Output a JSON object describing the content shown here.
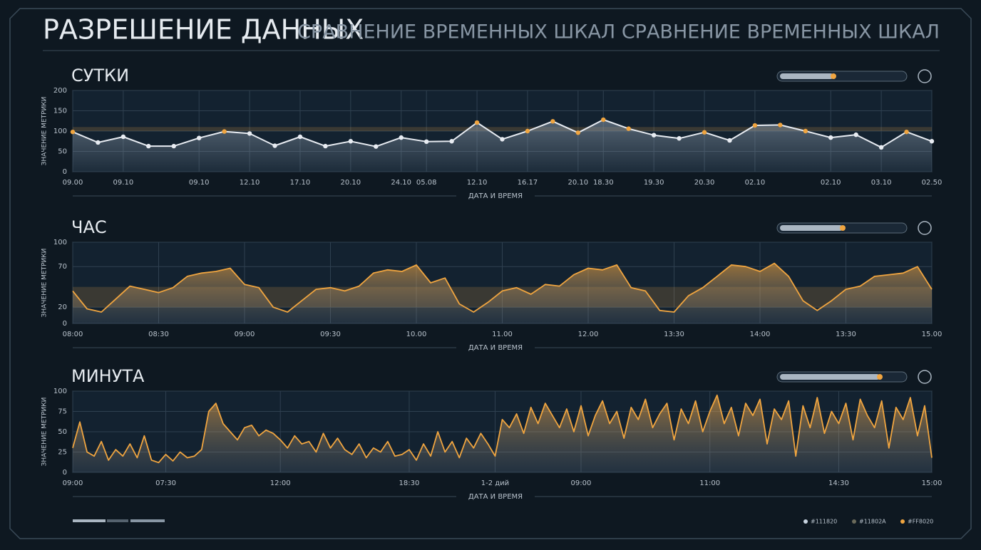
{
  "header": {
    "title": "РАЗРЕШЕНИЕ ДАННЫХ",
    "subtitle": "СРАВНЕНИЕ ВРЕМЕННЫХ ШКАЛ СРАВНЕНИЕ ВРЕМЕННЫХ ШКАЛ"
  },
  "chart_data": [
    {
      "type": "area",
      "title": "СУТКИ",
      "ylabel": "ЗНАЧЕНИЕ МЕТРИКИ",
      "xlabel": "ДАТА И ВРЕМЯ",
      "categories": [
        "09.00",
        null,
        "09.10",
        null,
        null,
        "09.10",
        null,
        "12.10",
        null,
        "17.10",
        null,
        "20.10",
        null,
        "24.10",
        "05.08",
        null,
        "12.10",
        null,
        "16.17",
        null,
        "20.10",
        "18.30",
        null,
        "19.30",
        null,
        "20.30",
        null,
        "02.10",
        null,
        null,
        "02.10",
        null,
        "03.10",
        null,
        "02.50"
      ],
      "values": [
        98,
        72,
        86,
        63,
        63,
        83,
        99,
        94,
        64,
        86,
        63,
        75,
        62,
        84,
        74,
        75,
        121,
        80,
        100,
        124,
        96,
        128,
        106,
        90,
        82,
        97,
        77,
        114,
        115,
        100,
        84,
        91,
        60,
        98,
        75
      ],
      "color": "#e8ecf2",
      "highlight_color": "#f0a540",
      "highlight_band": [
        100,
        110
      ],
      "ylim": [
        0,
        200
      ],
      "yticks": [
        0,
        50,
        100,
        150,
        200
      ],
      "grid": true,
      "markers": true
    },
    {
      "type": "area",
      "title": "ЧАС",
      "ylabel": "ЗНАЧЕНИЕ МЕТРИКИ",
      "xlabel": "ДАТА И ВРЕМЯ",
      "categories": [
        "08:00",
        null,
        null,
        null,
        null,
        null,
        "08:30",
        null,
        null,
        null,
        null,
        null,
        "09:00",
        null,
        null,
        null,
        null,
        null,
        "09:30",
        null,
        null,
        null,
        null,
        null,
        "10.00",
        null,
        null,
        null,
        null,
        null,
        "11.00",
        null,
        null,
        null,
        null,
        null,
        "12.00",
        null,
        null,
        null,
        null,
        null,
        "13:30",
        null,
        null,
        null,
        null,
        null,
        "14:00",
        null,
        null,
        null,
        null,
        null,
        "13:30",
        null,
        null,
        null,
        null,
        null,
        "15.00"
      ],
      "values": [
        40,
        18,
        14,
        30,
        46,
        42,
        38,
        44,
        58,
        62,
        64,
        68,
        48,
        44,
        20,
        14,
        28,
        42,
        44,
        40,
        46,
        62,
        66,
        64,
        72,
        50,
        56,
        24,
        14,
        26,
        40,
        44,
        36,
        48,
        46,
        60,
        68,
        66,
        72,
        44,
        40,
        16,
        14,
        34,
        44,
        58,
        72,
        70,
        64,
        74,
        58,
        28,
        16,
        28,
        42,
        46,
        58,
        60,
        62,
        70,
        42
      ],
      "color": "#f0a540",
      "highlight_band": [
        20,
        45
      ],
      "ylim": [
        0,
        100
      ],
      "yticks": [
        0,
        20,
        70,
        100
      ],
      "grid": true,
      "markers": false
    },
    {
      "type": "area",
      "title": "МИНУТА",
      "ylabel": "ЗНАЧЕНИЕ МЕТРИКИ",
      "xlabel": "ДАТА И ВРЕМЯ",
      "categories": [
        "09:00",
        null,
        null,
        null,
        null,
        null,
        null,
        null,
        null,
        null,
        null,
        null,
        null,
        "07:30",
        null,
        null,
        null,
        null,
        null,
        null,
        null,
        null,
        null,
        null,
        null,
        null,
        null,
        null,
        null,
        "12:00",
        null,
        null,
        null,
        null,
        null,
        null,
        null,
        null,
        null,
        null,
        null,
        null,
        null,
        null,
        null,
        null,
        null,
        "18:30",
        null,
        null,
        null,
        null,
        null,
        null,
        null,
        null,
        null,
        null,
        null,
        "1-2 дий",
        null,
        null,
        null,
        null,
        null,
        null,
        null,
        null,
        null,
        null,
        null,
        "09:00",
        null,
        null,
        null,
        null,
        null,
        null,
        null,
        null,
        null,
        null,
        null,
        null,
        null,
        null,
        null,
        null,
        null,
        "11:00",
        null,
        null,
        null,
        null,
        null,
        null,
        null,
        null,
        null,
        null,
        null,
        null,
        null,
        null,
        null,
        null,
        null,
        "14:30",
        null,
        null,
        null,
        null,
        null,
        null,
        null,
        null,
        null,
        null,
        null,
        null,
        "15:00"
      ],
      "values": [
        30,
        62,
        25,
        20,
        38,
        15,
        28,
        20,
        35,
        18,
        45,
        15,
        12,
        22,
        14,
        25,
        18,
        20,
        28,
        75,
        85,
        60,
        50,
        40,
        55,
        58,
        45,
        52,
        48,
        40,
        30,
        45,
        35,
        38,
        25,
        48,
        30,
        42,
        28,
        22,
        35,
        18,
        30,
        25,
        38,
        20,
        22,
        28,
        15,
        35,
        20,
        50,
        25,
        38,
        18,
        42,
        30,
        48,
        35,
        20,
        65,
        55,
        72,
        48,
        80,
        60,
        85,
        70,
        55,
        78,
        50,
        82,
        45,
        70,
        88,
        60,
        75,
        42,
        80,
        65,
        90,
        55,
        72,
        85,
        40,
        78,
        60,
        88,
        50,
        75,
        95,
        60,
        80,
        45,
        85,
        70,
        90,
        35,
        78,
        65,
        88,
        20,
        82,
        55,
        92,
        48,
        75,
        60,
        85,
        40,
        90,
        70,
        55,
        88,
        30,
        80,
        65,
        92,
        45,
        82,
        18
      ],
      "color": "#f0a540",
      "ylim": [
        0,
        100
      ],
      "yticks": [
        0,
        25,
        50,
        75,
        100
      ],
      "grid": true,
      "markers": false
    }
  ],
  "legend": [
    {
      "label": "#111820",
      "color": "#c8d4e0"
    },
    {
      "label": "#11802A",
      "color": "#6a6a5a"
    },
    {
      "label": "#FF8020",
      "color": "#f0a540"
    }
  ]
}
